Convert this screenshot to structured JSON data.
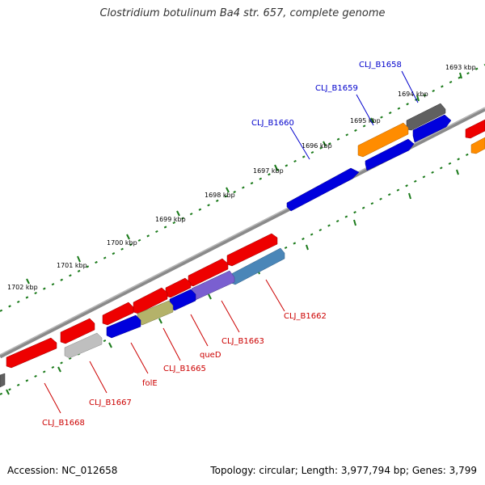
{
  "title": "Clostridium botulinum Ba4 str. 657, complete genome",
  "footer": {
    "accession": "Accession: NC_012658",
    "topology": "Topology: circular; Length: 3,977,794 bp; Genes: 3,799"
  },
  "kbp_labels": [
    "1693 kbp",
    "1694 kbp",
    "1695 kbp",
    "1696 kbp",
    "1697 kbp",
    "1698 kbp",
    "1699 kbp",
    "1700 kbp",
    "1701 kbp",
    "1702 kbp"
  ],
  "gene_labels_top": [
    "CLJ_B1658",
    "CLJ_B1659",
    "CLJ_B1660"
  ],
  "gene_labels_bottom": [
    "CLJ_B1662",
    "CLJ_B1663",
    "queD",
    "CLJ_B1665",
    "folE",
    "CLJ_B1667",
    "CLJ_B1668"
  ],
  "colors": {
    "forward_cds": "#ee0000",
    "reverse_cds": "#0000dd",
    "orange_gene": "#ff8c00",
    "dark_gray_gene": "#606060",
    "light_gray_gene": "#bfbfbf",
    "steel_blue_gene": "#4a86b8",
    "purple_gene": "#7a5fd0",
    "olive_gene": "#b4b26a",
    "tick_green": "#1a7a1a",
    "backbone": "#8a8a8a",
    "label_blue": "#0000cc",
    "label_red": "#cc0000"
  }
}
